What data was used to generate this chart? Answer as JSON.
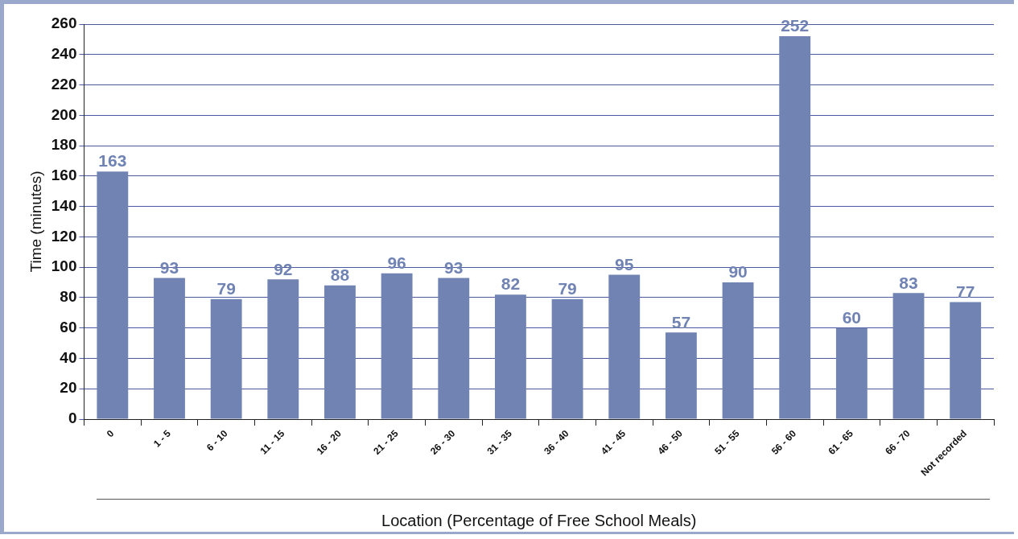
{
  "chart_data": {
    "type": "bar",
    "xlabel": "Location (Percentage of Free School Meals)",
    "ylabel": "Time (minutes)",
    "categories": [
      "0",
      "1 - 5",
      "6 - 10",
      "11 - 15",
      "16 - 20",
      "21 - 25",
      "26 - 30",
      "31 - 35",
      "36 - 40",
      "41 - 45",
      "46 - 50",
      "51 - 55",
      "56 - 60",
      "61 - 65",
      "66 - 70",
      "Not recorded"
    ],
    "values": [
      163,
      93,
      79,
      92,
      88,
      96,
      93,
      82,
      79,
      95,
      57,
      90,
      252,
      60,
      83,
      77
    ],
    "color": "#7083b3",
    "ylim": [
      0,
      260
    ],
    "yticks": [
      0,
      20,
      40,
      60,
      80,
      100,
      120,
      140,
      160,
      180,
      200,
      220,
      240,
      260
    ],
    "grid": "y",
    "data_labels": true,
    "legend": false
  }
}
